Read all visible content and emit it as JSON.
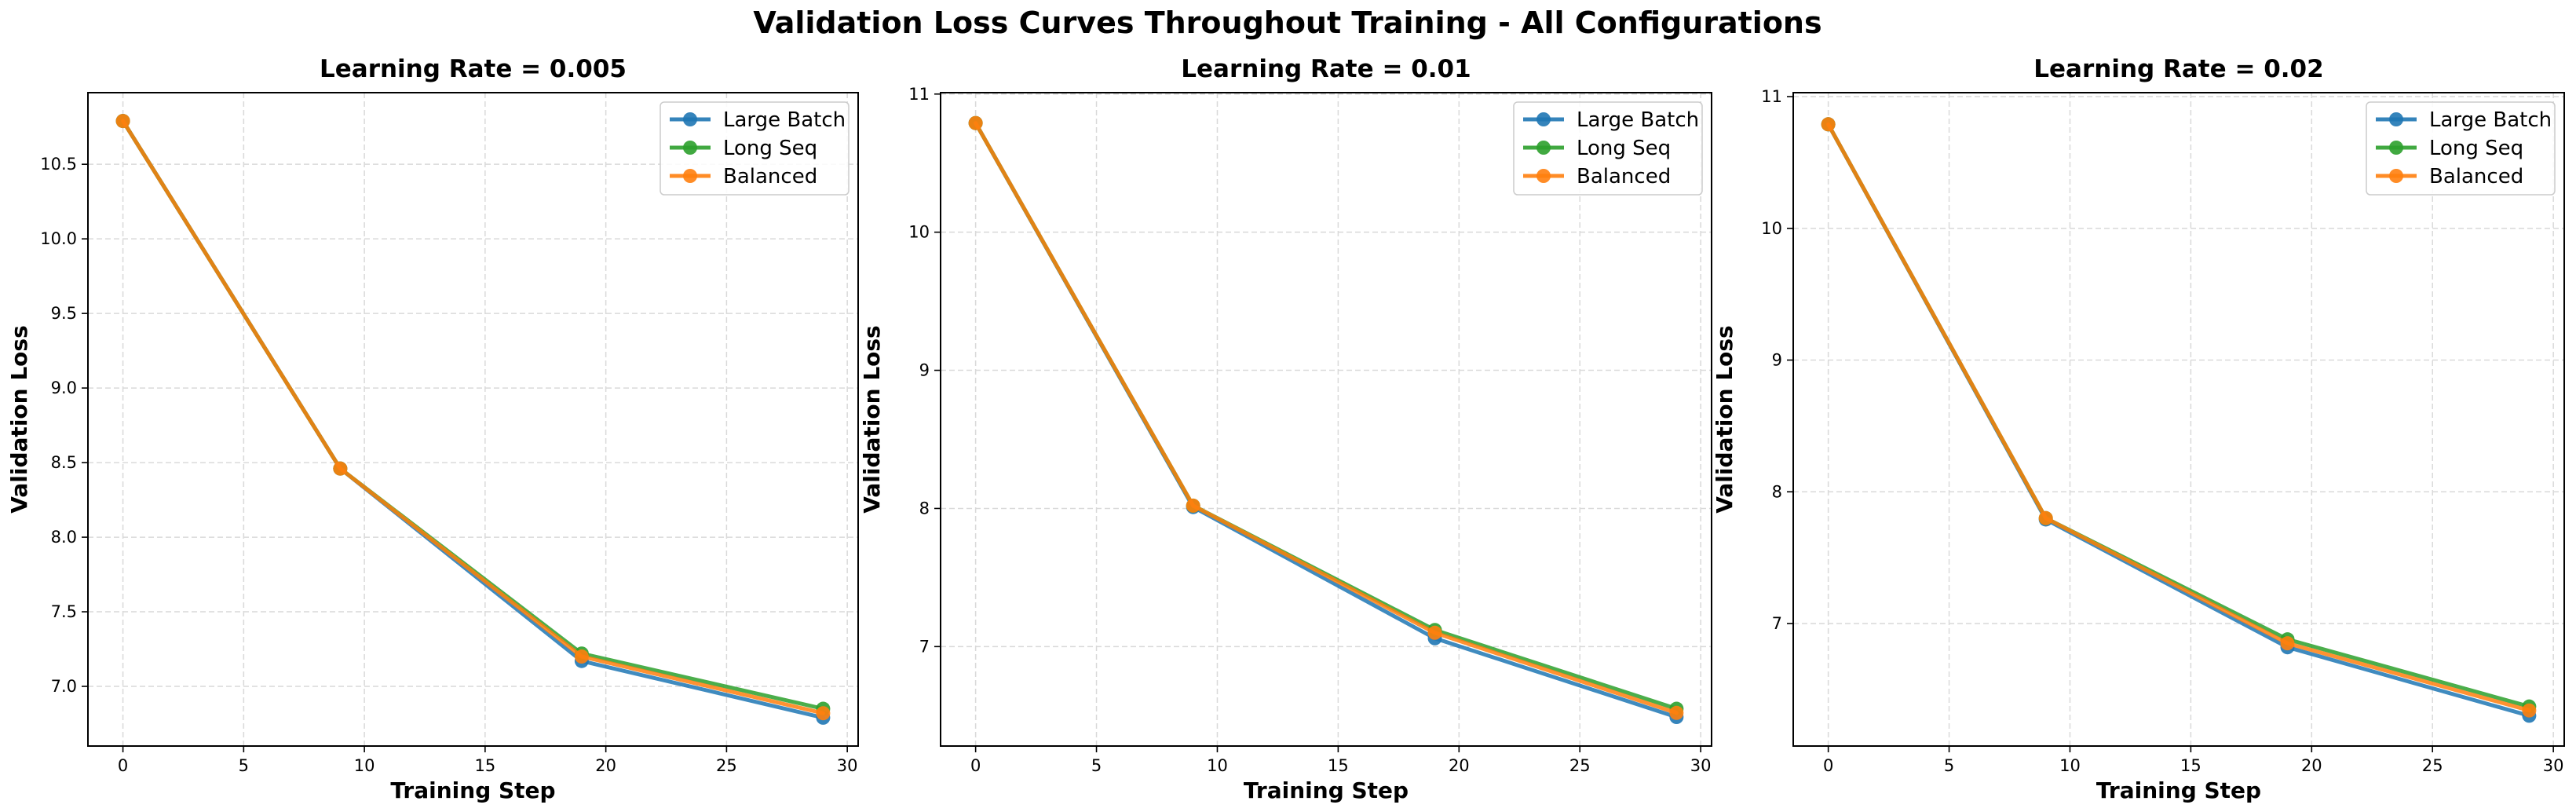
{
  "suptitle": "Validation Loss Curves Throughout Training - All Configurations",
  "colors": {
    "Large Batch": "#1f77b4",
    "Long Seq": "#2ca02c",
    "Balanced": "#ff7f0e"
  },
  "chart_data": [
    {
      "type": "line",
      "title": "Learning Rate = 0.005",
      "xlabel": "Training Step",
      "ylabel": "Validation Loss",
      "xlim": [
        -1.45,
        30.45
      ],
      "ylim": [
        6.6,
        10.98
      ],
      "xticks": [
        0,
        5,
        10,
        15,
        20,
        25,
        30
      ],
      "xtick_labels": [
        "0",
        "5",
        "10",
        "15",
        "20",
        "25",
        "30"
      ],
      "yticks": [
        7.0,
        7.5,
        8.0,
        8.5,
        9.0,
        9.5,
        10.0,
        10.5
      ],
      "ytick_labels": [
        "7.0",
        "7.5",
        "8.0",
        "8.5",
        "9.0",
        "9.5",
        "10.0",
        "10.5"
      ],
      "grid": true,
      "legend": "top-right",
      "x": [
        0,
        9,
        19,
        29
      ],
      "series": [
        {
          "name": "Large Batch",
          "values": [
            10.79,
            8.46,
            7.17,
            6.79
          ]
        },
        {
          "name": "Long Seq",
          "values": [
            10.79,
            8.46,
            7.22,
            6.85
          ]
        },
        {
          "name": "Balanced",
          "values": [
            10.79,
            8.46,
            7.2,
            6.82
          ]
        }
      ]
    },
    {
      "type": "line",
      "title": "Learning Rate = 0.01",
      "xlabel": "Training Step",
      "ylabel": "Validation Loss",
      "xlim": [
        -1.45,
        30.45
      ],
      "ylim": [
        6.28,
        11.01
      ],
      "xticks": [
        0,
        5,
        10,
        15,
        20,
        25,
        30
      ],
      "xtick_labels": [
        "0",
        "5",
        "10",
        "15",
        "20",
        "25",
        "30"
      ],
      "yticks": [
        7,
        8,
        9,
        10,
        11
      ],
      "ytick_labels": [
        "7",
        "8",
        "9",
        "10",
        "11"
      ],
      "grid": true,
      "legend": "top-right",
      "x": [
        0,
        9,
        19,
        29
      ],
      "series": [
        {
          "name": "Large Batch",
          "values": [
            10.79,
            8.01,
            7.06,
            6.49
          ]
        },
        {
          "name": "Long Seq",
          "values": [
            10.79,
            8.02,
            7.12,
            6.55
          ]
        },
        {
          "name": "Balanced",
          "values": [
            10.79,
            8.02,
            7.1,
            6.52
          ]
        }
      ]
    },
    {
      "type": "line",
      "title": "Learning Rate = 0.02",
      "xlabel": "Training Step",
      "ylabel": "Validation Loss",
      "xlim": [
        -1.45,
        30.45
      ],
      "ylim": [
        6.07,
        11.03
      ],
      "xticks": [
        0,
        5,
        10,
        15,
        20,
        25,
        30
      ],
      "xtick_labels": [
        "0",
        "5",
        "10",
        "15",
        "20",
        "25",
        "30"
      ],
      "yticks": [
        7,
        8,
        9,
        10,
        11
      ],
      "ytick_labels": [
        "7",
        "8",
        "9",
        "10",
        "11"
      ],
      "grid": true,
      "legend": "top-right",
      "x": [
        0,
        9,
        19,
        29
      ],
      "series": [
        {
          "name": "Large Batch",
          "values": [
            10.79,
            7.79,
            6.82,
            6.3
          ]
        },
        {
          "name": "Long Seq",
          "values": [
            10.79,
            7.8,
            6.88,
            6.37
          ]
        },
        {
          "name": "Balanced",
          "values": [
            10.79,
            7.8,
            6.85,
            6.34
          ]
        }
      ]
    }
  ]
}
